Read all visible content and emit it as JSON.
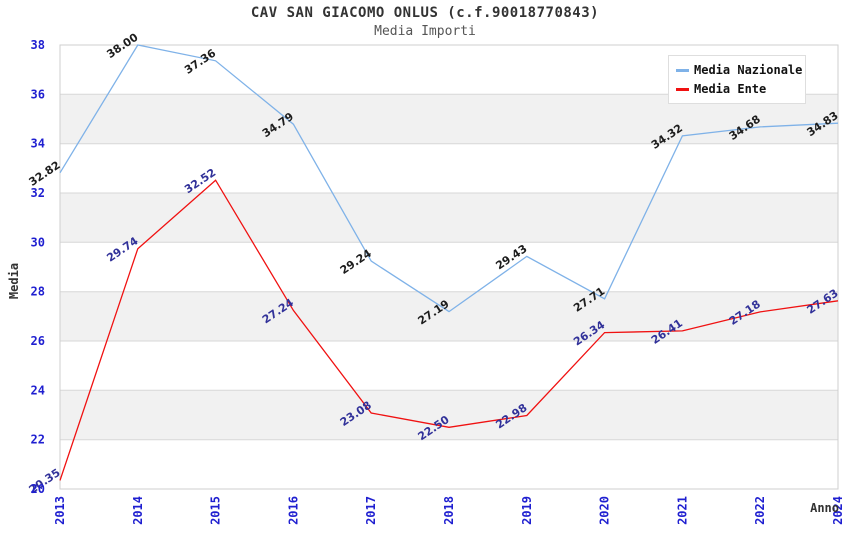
{
  "header": {
    "title": "CAV SAN GIACOMO ONLUS (c.f.90018770843)",
    "subtitle": "Media Importi"
  },
  "chart_data": {
    "type": "line",
    "x": [
      "2013",
      "2014",
      "2015",
      "2016",
      "2017",
      "2018",
      "2019",
      "2020",
      "2021",
      "2022",
      "2024"
    ],
    "xlabel": "Anno",
    "ylabel": "Media",
    "ylim": [
      20,
      38
    ],
    "ytick_step": 2,
    "yticks": [
      20,
      22,
      24,
      26,
      28,
      30,
      32,
      34,
      36,
      38
    ],
    "grid": "horizontal",
    "bands": "alternating",
    "legend_position": "top-right",
    "series": [
      {
        "name": "Media Nazionale",
        "color": "#7fb2e8",
        "label_color": "#1c1c1c",
        "values": [
          32.82,
          38.0,
          37.36,
          34.79,
          29.24,
          27.19,
          29.43,
          27.71,
          34.32,
          34.68,
          34.83
        ]
      },
      {
        "name": "Media Ente",
        "color": "#f01111",
        "label_color": "#313199",
        "values": [
          20.35,
          29.74,
          32.52,
          27.24,
          23.08,
          22.5,
          22.98,
          26.34,
          26.41,
          27.18,
          27.63
        ]
      }
    ],
    "colors": {
      "tick_label": "#1f1fd0",
      "axis_title": "#333333",
      "band": "#f1f1f1",
      "grid_line": "#d7d7d7",
      "plot_border": "#cfcfcf",
      "background": "#ffffff"
    }
  }
}
